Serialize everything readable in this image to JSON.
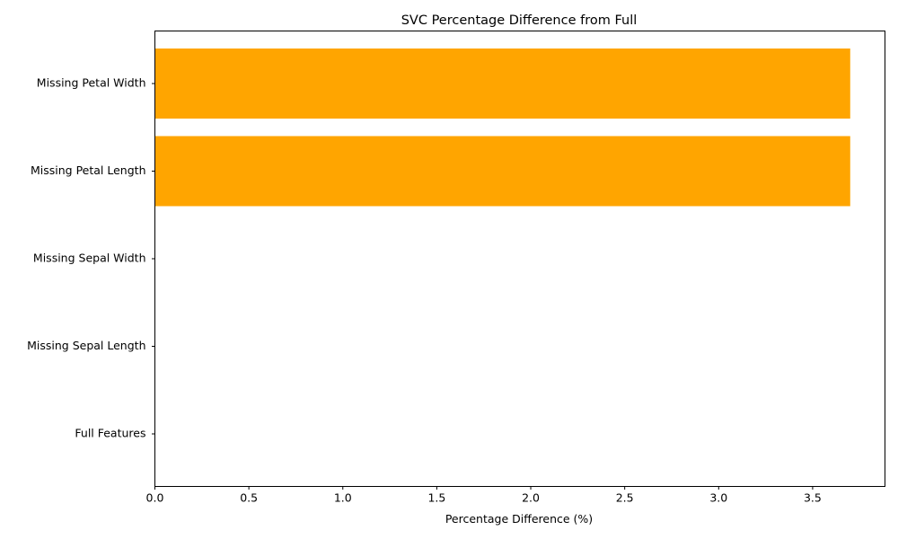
{
  "chart_data": {
    "type": "bar",
    "orientation": "horizontal",
    "title": "SVC Percentage Difference from Full",
    "xlabel": "Percentage Difference (%)",
    "ylabel": "",
    "categories": [
      "Full Features",
      "Missing Sepal Length",
      "Missing Sepal Width",
      "Missing Petal Length",
      "Missing Petal Width"
    ],
    "values": [
      0.0,
      0.0,
      0.0,
      3.7,
      3.7
    ],
    "xlim": [
      0,
      3.885
    ],
    "xticks": [
      "0.0",
      "0.5",
      "1.0",
      "1.5",
      "2.0",
      "2.5",
      "3.0",
      "3.5"
    ],
    "grid": false,
    "legend": "none",
    "bar_color": "#ffa500"
  }
}
